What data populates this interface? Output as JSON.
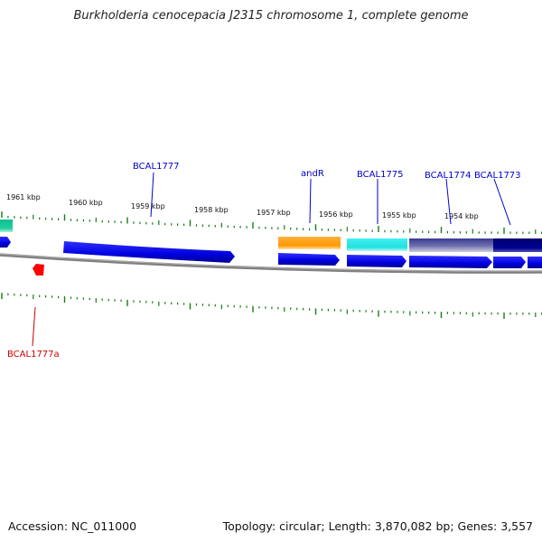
{
  "title": "Burkholderia cenocepacia J2315 chromosome 1, complete genome",
  "footer": {
    "accession": "Accession: NC_011000",
    "summary": "Topology: circular; Length: 3,870,082 bp; Genes: 3,557"
  },
  "colors": {
    "tick": "#1a7a1a",
    "backbone": "#808080",
    "forward_gene": "#0000e6",
    "label_forward": "#0000cc",
    "label_reverse": "#cc0000",
    "reverse_gene": "#ff0000"
  },
  "kbp_labels": [
    "1961 kbp",
    "1960 kbp",
    "1959 kbp",
    "1958 kbp",
    "1957 kbp",
    "1956 kbp",
    "1955 kbp",
    "1954 kbp"
  ],
  "gene_labels": [
    {
      "name": "BCAL1777",
      "strand": "forward"
    },
    {
      "name": "andR",
      "strand": "forward"
    },
    {
      "name": "BCAL1775",
      "strand": "forward"
    },
    {
      "name": "BCAL1774",
      "strand": "forward"
    },
    {
      "name": "BCAL1773",
      "strand": "forward"
    },
    {
      "name": "BCAL1777a",
      "strand": "reverse"
    }
  ],
  "feature_colors": {
    "teal": "#20d0a0",
    "orange": "#ff9900",
    "cyan": "#22e0e0",
    "slate": "#5a5aa0",
    "navy": "#000080"
  }
}
